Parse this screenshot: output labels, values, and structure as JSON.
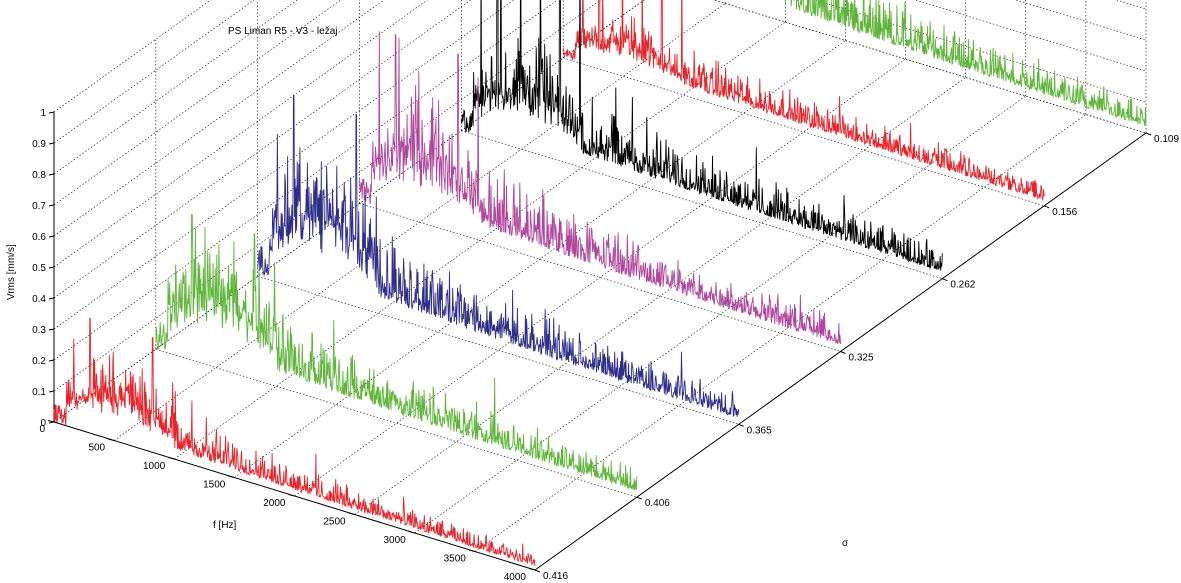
{
  "chart_data": {
    "type": "line",
    "title": "PS Liman R5 - V3 - ležaj",
    "xlabel": "f [Hz]",
    "ylabel": "σ",
    "zlabel": "Vrms [mm/s]",
    "x_ticks": [
      "0",
      "500",
      "1000",
      "1500",
      "2000",
      "2500",
      "3000",
      "3500",
      "4000"
    ],
    "xlim": [
      0,
      4000
    ],
    "y_ticks": [
      "0.416",
      "0.406",
      "0.365",
      "0.325",
      "0.262",
      "0.156",
      "0.109"
    ],
    "z_ticks": [
      "0",
      "0.1",
      "0.2",
      "0.3",
      "0.4",
      "0.5",
      "0.6",
      "0.7",
      "0.8",
      "0.9",
      "1"
    ],
    "zlim": [
      0,
      1
    ],
    "grid": true,
    "series": [
      {
        "sigma": "0.416",
        "color": "#e8242a",
        "peak": 0.37,
        "low_level": 0.17,
        "tail_level": 0.03
      },
      {
        "sigma": "0.406",
        "color": "#5fb53a",
        "peak": 0.47,
        "low_level": 0.27,
        "tail_level": 0.05
      },
      {
        "sigma": "0.365",
        "color": "#2e2e8a",
        "peak": 0.62,
        "low_level": 0.3,
        "tail_level": 0.05
      },
      {
        "sigma": "0.325",
        "color": "#b0459c",
        "peak": 0.58,
        "low_level": 0.25,
        "tail_level": 0.06
      },
      {
        "sigma": "0.262",
        "color": "#000000",
        "peak": 0.93,
        "low_level": 0.22,
        "tail_level": 0.06
      },
      {
        "sigma": "0.156",
        "color": "#e8242a",
        "peak": 0.47,
        "low_level": 0.12,
        "tail_level": 0.05
      },
      {
        "sigma": "0.109",
        "color": "#5fb53a",
        "peak": 0.75,
        "low_level": 0.28,
        "tail_level": 0.05
      }
    ]
  }
}
